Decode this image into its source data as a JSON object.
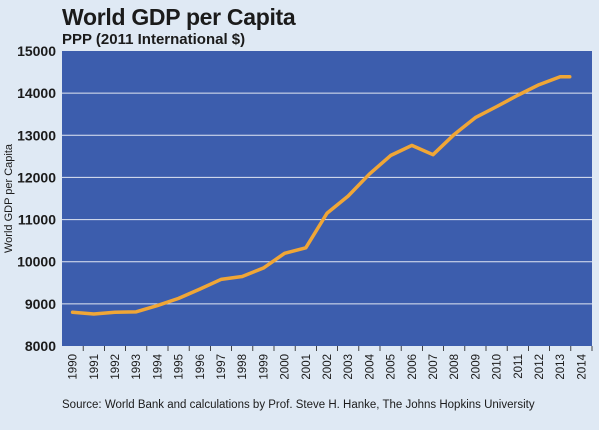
{
  "chart_data": {
    "type": "line",
    "title": "World GDP per Capita",
    "subtitle": "PPP (2011 International $)",
    "xlabel": "",
    "ylabel": "World GDP per Capita",
    "ylim": [
      8000,
      15000
    ],
    "y_ticks": [
      8000,
      9000,
      10000,
      11000,
      12000,
      13000,
      14000,
      15000
    ],
    "grid": true,
    "categories": [
      "1990",
      "1991",
      "1992",
      "1993",
      "1994",
      "1995",
      "1996",
      "1997",
      "1998",
      "1999",
      "2000",
      "2001",
      "2002",
      "2003",
      "2004",
      "2005",
      "2006",
      "2007",
      "2008",
      "2009",
      "2010",
      "2011",
      "2012",
      "2013",
      "2014"
    ],
    "series": [
      {
        "values": [
          8800,
          8760,
          8800,
          8810,
          8960,
          9130,
          9350,
          9580,
          9650,
          9850,
          10200,
          10330,
          11150,
          11560,
          12080,
          12520,
          12760,
          12540,
          13020,
          13420,
          13680,
          13950,
          14200,
          14390,
          14390
        ]
      }
    ],
    "colors": {
      "plot_bg": "#3c5dad",
      "line": "#f0a636",
      "grid": "#ffffff",
      "page_bg": "#dfe9f4"
    },
    "source": "Source: World Bank and calculations by Prof. Steve H. Hanke, The Johns Hopkins University"
  }
}
